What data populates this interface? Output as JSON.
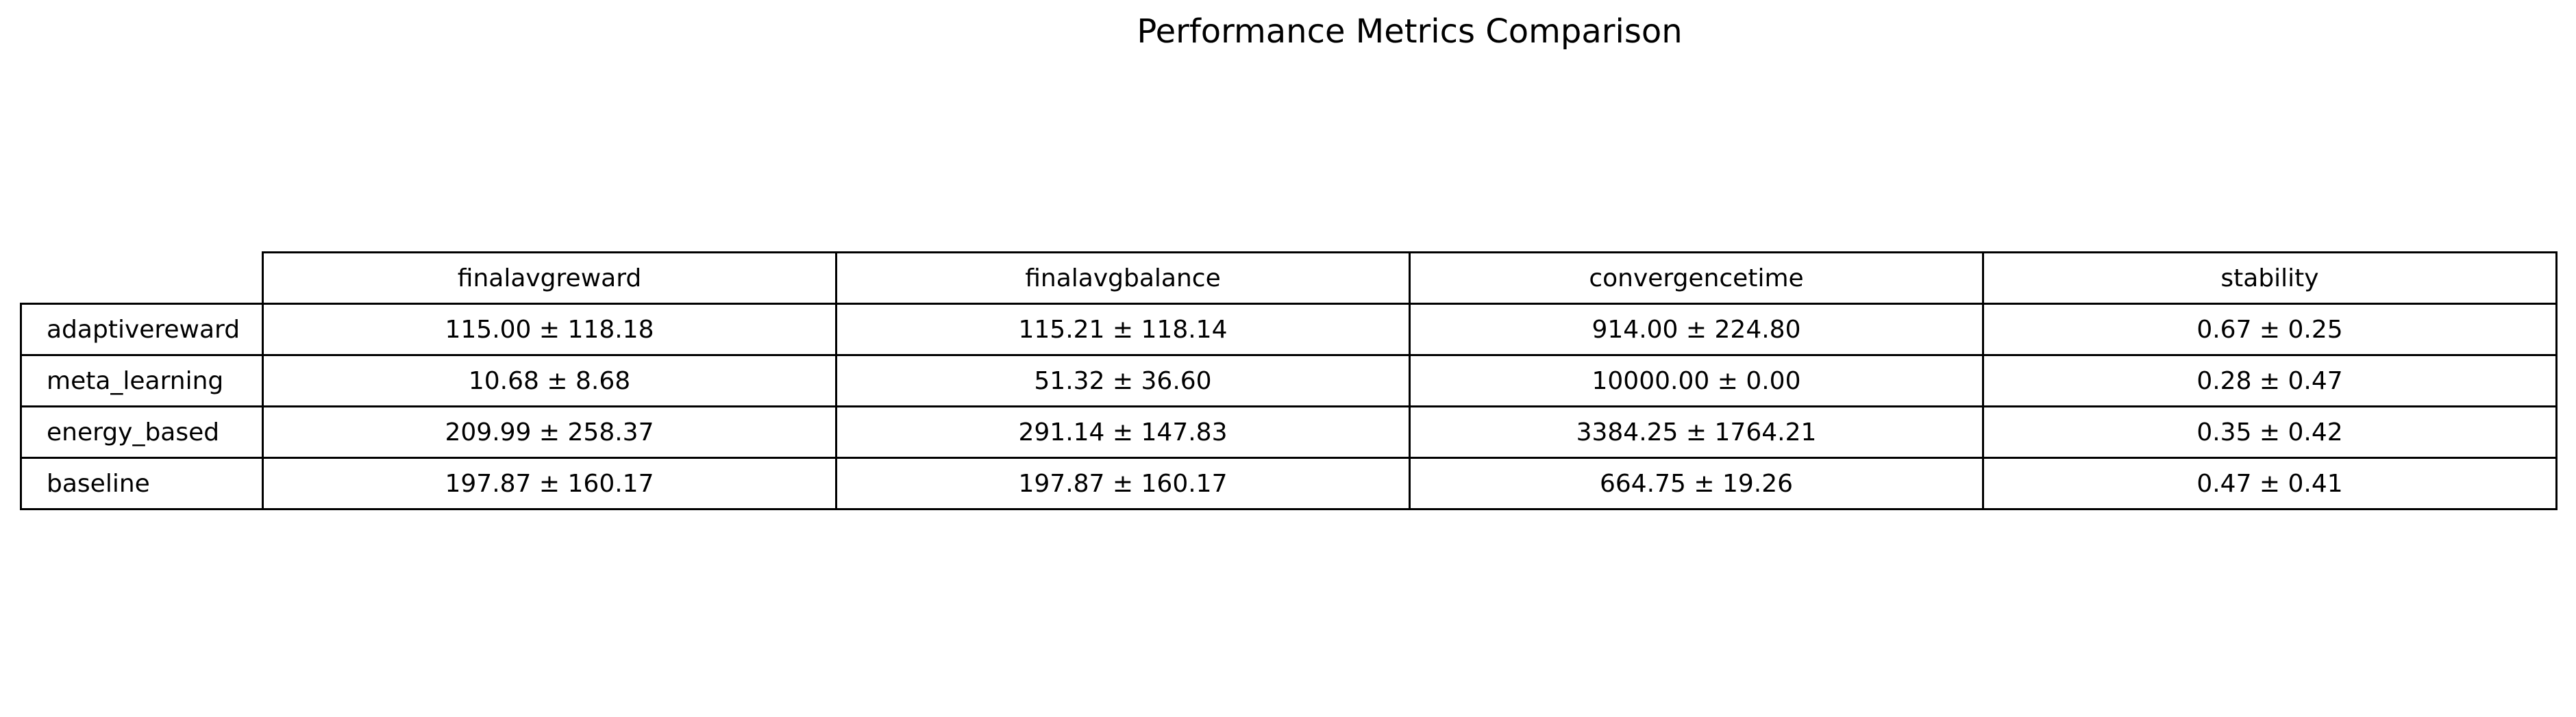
{
  "chart_data": {
    "type": "table",
    "title": "Performance Metrics Comparison",
    "columns": [
      "finalavgreward",
      "finalavgbalance",
      "convergencetime",
      "stability"
    ],
    "rows": [
      {
        "label": "adaptivereward",
        "cells": [
          "115.00 ± 118.18",
          "115.21 ± 118.14",
          "914.00 ± 224.80",
          "0.67 ± 0.25"
        ],
        "mean": [
          115.0,
          115.21,
          914.0,
          0.67
        ],
        "std": [
          118.18,
          118.14,
          224.8,
          0.25
        ]
      },
      {
        "label": "meta_learning",
        "cells": [
          "10.68 ± 8.68",
          "51.32 ± 36.60",
          "10000.00 ± 0.00",
          "0.28 ± 0.47"
        ],
        "mean": [
          10.68,
          51.32,
          10000.0,
          0.28
        ],
        "std": [
          8.68,
          36.6,
          0.0,
          0.47
        ]
      },
      {
        "label": "energy_based",
        "cells": [
          "209.99 ± 258.37",
          "291.14 ± 147.83",
          "3384.25 ± 1764.21",
          "0.35 ± 0.42"
        ],
        "mean": [
          209.99,
          291.14,
          3384.25,
          0.35
        ],
        "std": [
          258.37,
          147.83,
          1764.21,
          0.42
        ]
      },
      {
        "label": "baseline",
        "cells": [
          "197.87 ± 160.17",
          "197.87 ± 160.17",
          "664.75 ± 19.26",
          "0.47 ± 0.41"
        ],
        "mean": [
          197.87,
          197.87,
          664.75,
          0.47
        ],
        "std": [
          160.17,
          160.17,
          19.26,
          0.41
        ]
      }
    ]
  }
}
